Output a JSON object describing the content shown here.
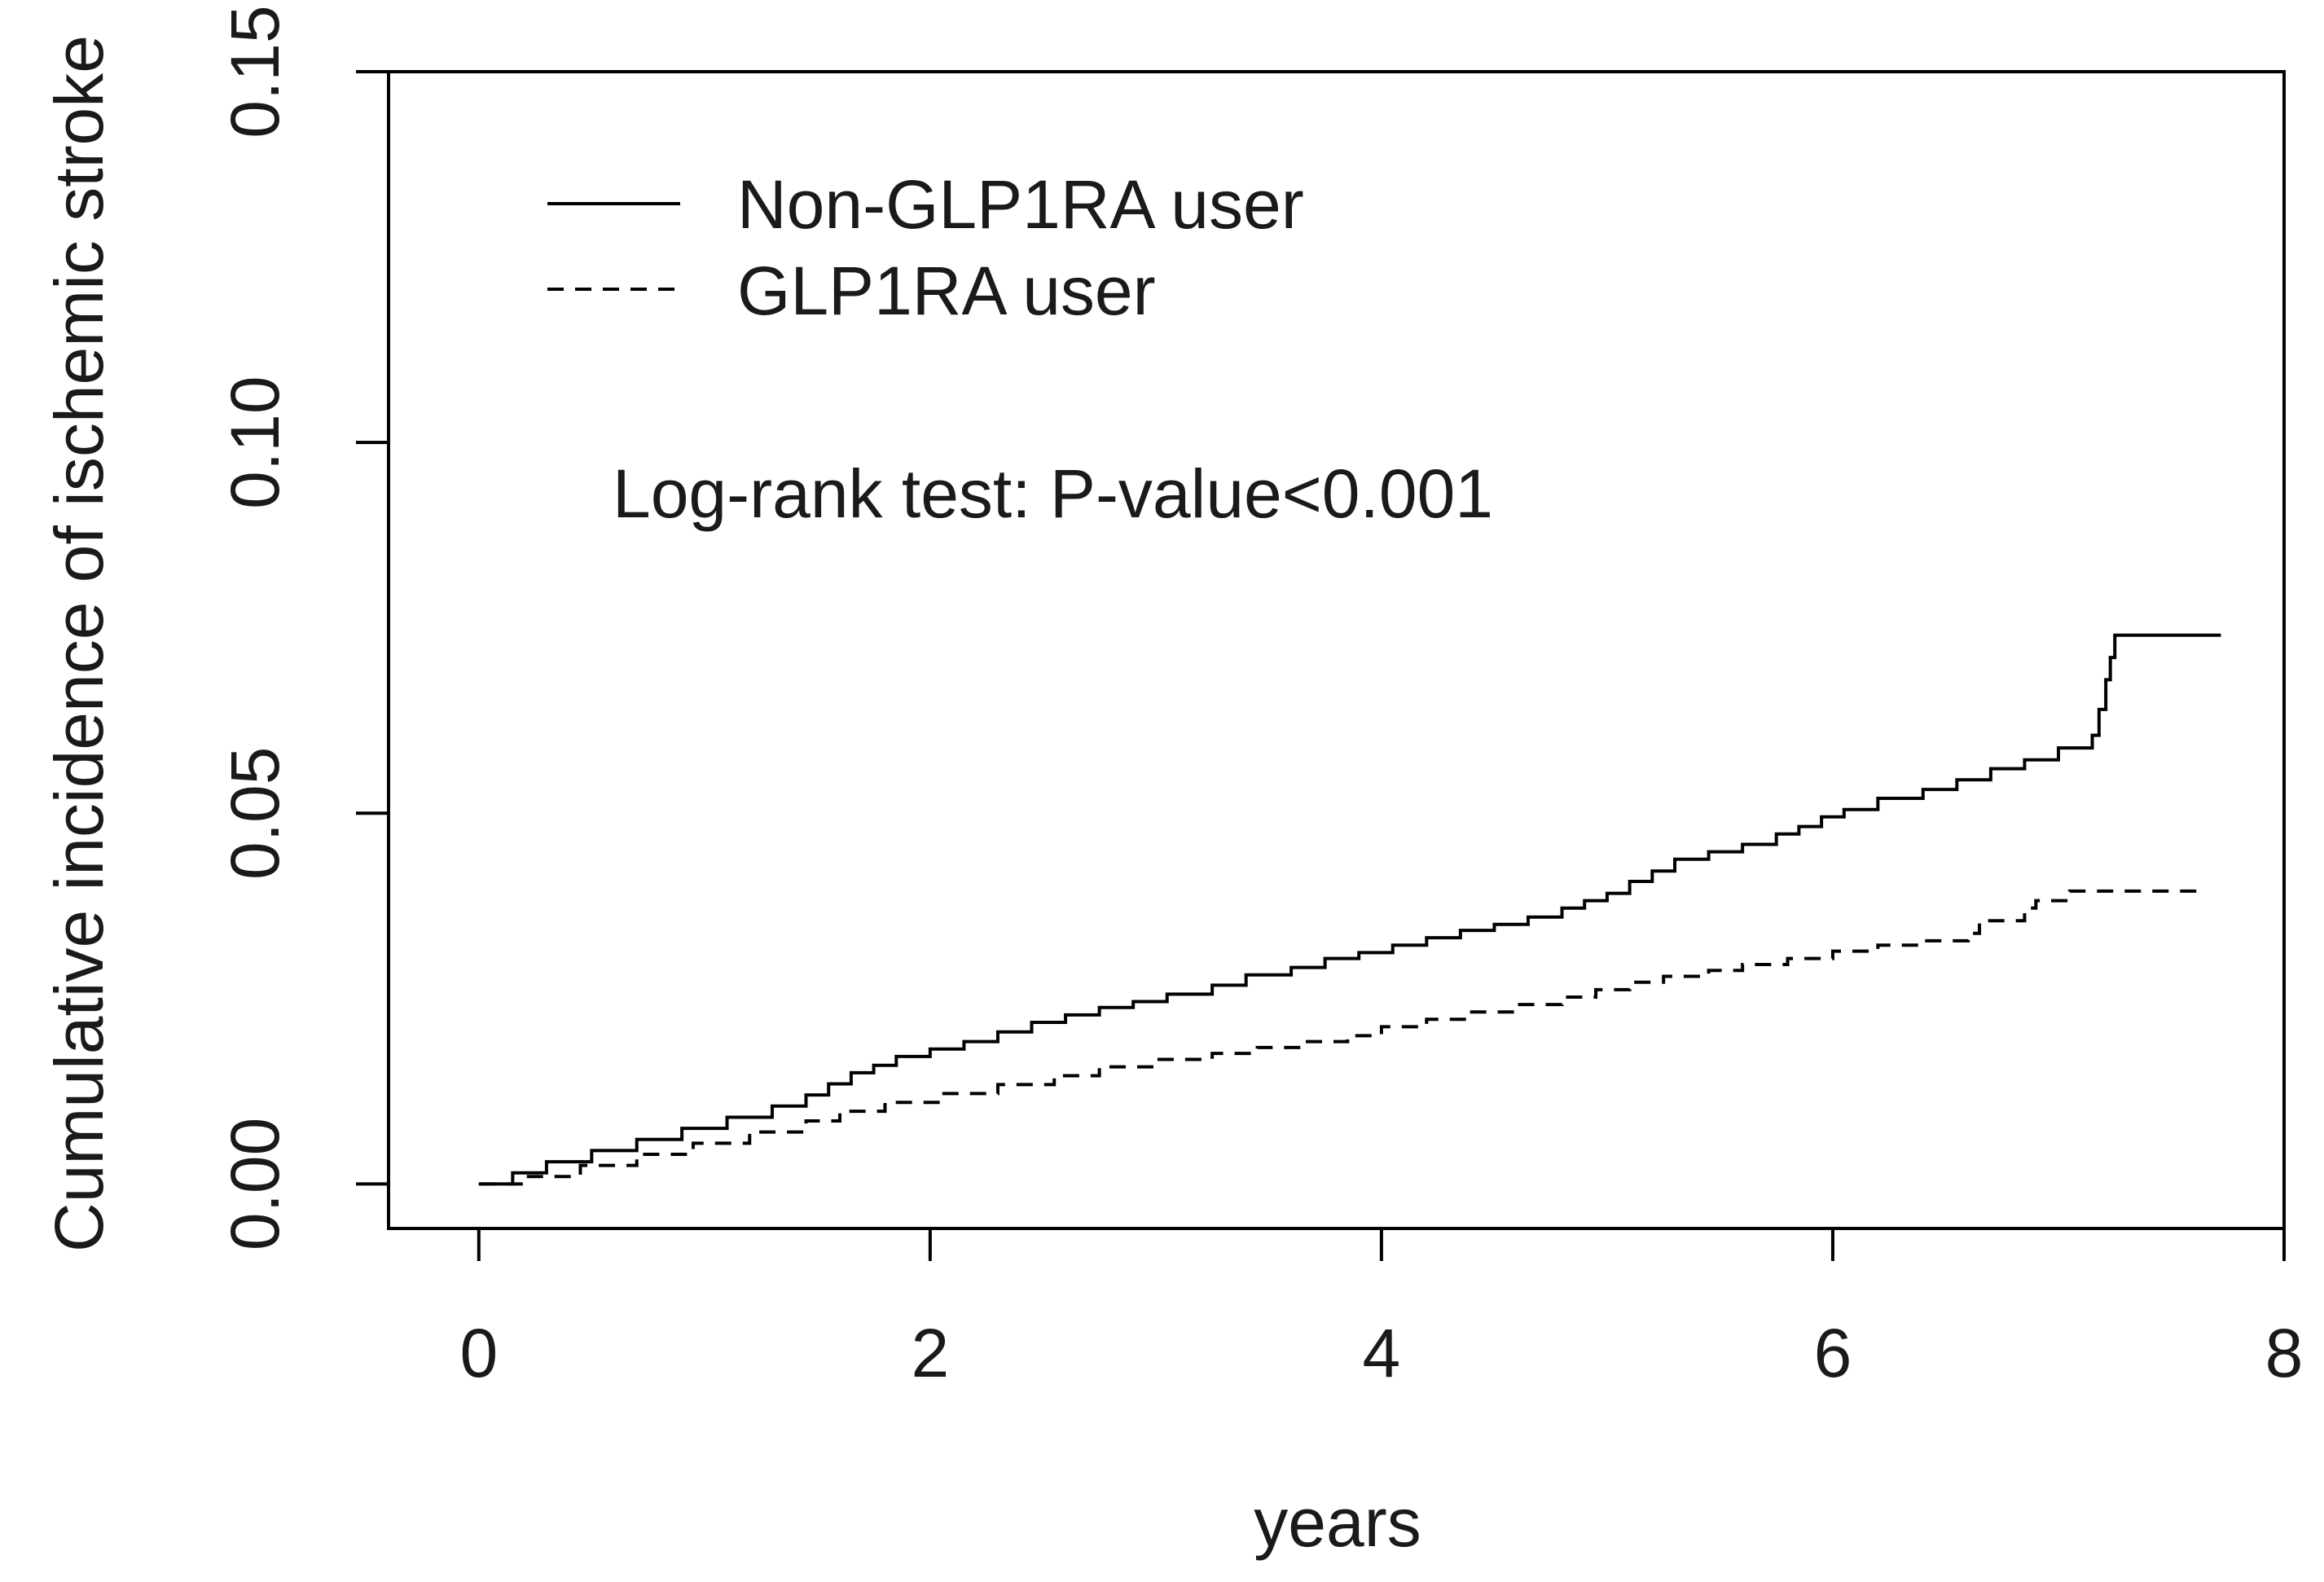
{
  "chart_data": {
    "type": "line",
    "title": "",
    "xlabel": "years",
    "ylabel": "Cumulative incidence of ischemic stroke",
    "xlim": [
      -0.4,
      8.0
    ],
    "ylim": [
      -0.006,
      0.15
    ],
    "x_ticks": [
      0,
      2,
      4,
      6,
      8
    ],
    "x_tick_labels": [
      "0",
      "2",
      "4",
      "6",
      "8"
    ],
    "y_ticks": [
      0.0,
      0.05,
      0.1,
      0.15
    ],
    "y_tick_labels": [
      "0.00",
      "0.05",
      "0.10",
      "0.15"
    ],
    "grid": false,
    "legend_position": "top-left",
    "annotation": "Log-rank test: P-value<0.001",
    "series": [
      {
        "name": "Non-GLP1RA user",
        "line_style": "solid",
        "color": "#000000",
        "x": [
          0.0,
          0.15,
          0.3,
          0.5,
          0.7,
          0.9,
          1.1,
          1.3,
          1.45,
          1.55,
          1.65,
          1.75,
          1.85,
          2.0,
          2.15,
          2.3,
          2.45,
          2.6,
          2.75,
          2.9,
          3.05,
          3.25,
          3.4,
          3.6,
          3.75,
          3.9,
          4.05,
          4.2,
          4.35,
          4.5,
          4.65,
          4.8,
          4.9,
          5.0,
          5.1,
          5.2,
          5.3,
          5.45,
          5.6,
          5.75,
          5.85,
          5.95,
          6.05,
          6.2,
          6.4,
          6.55,
          6.7,
          6.85,
          7.0,
          7.15,
          7.18,
          7.21,
          7.23,
          7.25,
          7.4,
          7.72
        ],
        "y": [
          0.0,
          0.0015,
          0.003,
          0.0045,
          0.006,
          0.0075,
          0.009,
          0.0105,
          0.012,
          0.0135,
          0.015,
          0.016,
          0.0172,
          0.0182,
          0.0192,
          0.0205,
          0.0218,
          0.0228,
          0.0238,
          0.0246,
          0.0256,
          0.0268,
          0.0282,
          0.0292,
          0.0304,
          0.0312,
          0.0322,
          0.0332,
          0.0342,
          0.035,
          0.036,
          0.0372,
          0.0382,
          0.0392,
          0.0408,
          0.0422,
          0.0438,
          0.0448,
          0.0458,
          0.0472,
          0.0482,
          0.0495,
          0.0505,
          0.052,
          0.0532,
          0.0545,
          0.056,
          0.0572,
          0.0588,
          0.0605,
          0.064,
          0.068,
          0.071,
          0.074,
          0.074,
          0.074
        ]
      },
      {
        "name": "GLP1RA user",
        "line_style": "dashed",
        "color": "#000000",
        "x": [
          0.0,
          0.2,
          0.45,
          0.7,
          0.95,
          1.2,
          1.45,
          1.6,
          1.8,
          2.05,
          2.3,
          2.55,
          2.75,
          3.0,
          3.25,
          3.45,
          3.65,
          3.85,
          4.0,
          4.2,
          4.4,
          4.6,
          4.8,
          4.95,
          5.1,
          5.25,
          5.45,
          5.6,
          5.8,
          6.0,
          6.2,
          6.4,
          6.6,
          6.65,
          6.85,
          6.9,
          7.05,
          7.3,
          7.65
        ],
        "y": [
          0.0,
          0.001,
          0.0025,
          0.004,
          0.0055,
          0.007,
          0.0085,
          0.0098,
          0.011,
          0.0122,
          0.0134,
          0.0146,
          0.0158,
          0.0168,
          0.0176,
          0.0184,
          0.0192,
          0.02,
          0.0212,
          0.0222,
          0.0232,
          0.0242,
          0.0252,
          0.0262,
          0.0272,
          0.028,
          0.0288,
          0.0296,
          0.0304,
          0.0314,
          0.0322,
          0.0328,
          0.0338,
          0.0355,
          0.0372,
          0.0382,
          0.0395,
          0.0395,
          0.0395
        ]
      }
    ]
  }
}
